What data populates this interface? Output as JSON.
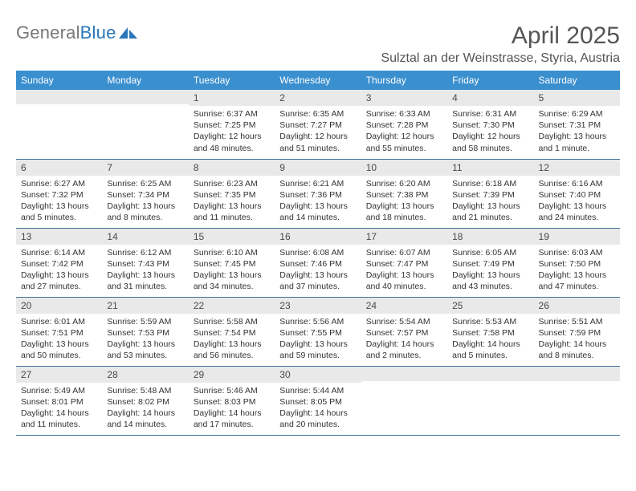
{
  "brand": {
    "name_part1": "General",
    "name_part2": "Blue",
    "text_color_gray": "#777777",
    "text_color_blue": "#2a77bb",
    "icon_fill": "#2a77bb"
  },
  "title": "April 2025",
  "location": "Sulztal an der Weinstrasse, Styria, Austria",
  "colors": {
    "header_bg": "#3a8fcf",
    "header_fg": "#ffffff",
    "daynum_bg": "#e9e9e9",
    "daynum_fg": "#4a4a4a",
    "cell_text": "#333333",
    "row_border": "#3a6f9a",
    "page_bg": "#ffffff"
  },
  "columns": [
    "Sunday",
    "Monday",
    "Tuesday",
    "Wednesday",
    "Thursday",
    "Friday",
    "Saturday"
  ],
  "weeks": [
    [
      {
        "day": "",
        "sunrise": "",
        "sunset": "",
        "daylight": ""
      },
      {
        "day": "",
        "sunrise": "",
        "sunset": "",
        "daylight": ""
      },
      {
        "day": "1",
        "sunrise": "Sunrise: 6:37 AM",
        "sunset": "Sunset: 7:25 PM",
        "daylight": "Daylight: 12 hours and 48 minutes."
      },
      {
        "day": "2",
        "sunrise": "Sunrise: 6:35 AM",
        "sunset": "Sunset: 7:27 PM",
        "daylight": "Daylight: 12 hours and 51 minutes."
      },
      {
        "day": "3",
        "sunrise": "Sunrise: 6:33 AM",
        "sunset": "Sunset: 7:28 PM",
        "daylight": "Daylight: 12 hours and 55 minutes."
      },
      {
        "day": "4",
        "sunrise": "Sunrise: 6:31 AM",
        "sunset": "Sunset: 7:30 PM",
        "daylight": "Daylight: 12 hours and 58 minutes."
      },
      {
        "day": "5",
        "sunrise": "Sunrise: 6:29 AM",
        "sunset": "Sunset: 7:31 PM",
        "daylight": "Daylight: 13 hours and 1 minute."
      }
    ],
    [
      {
        "day": "6",
        "sunrise": "Sunrise: 6:27 AM",
        "sunset": "Sunset: 7:32 PM",
        "daylight": "Daylight: 13 hours and 5 minutes."
      },
      {
        "day": "7",
        "sunrise": "Sunrise: 6:25 AM",
        "sunset": "Sunset: 7:34 PM",
        "daylight": "Daylight: 13 hours and 8 minutes."
      },
      {
        "day": "8",
        "sunrise": "Sunrise: 6:23 AM",
        "sunset": "Sunset: 7:35 PM",
        "daylight": "Daylight: 13 hours and 11 minutes."
      },
      {
        "day": "9",
        "sunrise": "Sunrise: 6:21 AM",
        "sunset": "Sunset: 7:36 PM",
        "daylight": "Daylight: 13 hours and 14 minutes."
      },
      {
        "day": "10",
        "sunrise": "Sunrise: 6:20 AM",
        "sunset": "Sunset: 7:38 PM",
        "daylight": "Daylight: 13 hours and 18 minutes."
      },
      {
        "day": "11",
        "sunrise": "Sunrise: 6:18 AM",
        "sunset": "Sunset: 7:39 PM",
        "daylight": "Daylight: 13 hours and 21 minutes."
      },
      {
        "day": "12",
        "sunrise": "Sunrise: 6:16 AM",
        "sunset": "Sunset: 7:40 PM",
        "daylight": "Daylight: 13 hours and 24 minutes."
      }
    ],
    [
      {
        "day": "13",
        "sunrise": "Sunrise: 6:14 AM",
        "sunset": "Sunset: 7:42 PM",
        "daylight": "Daylight: 13 hours and 27 minutes."
      },
      {
        "day": "14",
        "sunrise": "Sunrise: 6:12 AM",
        "sunset": "Sunset: 7:43 PM",
        "daylight": "Daylight: 13 hours and 31 minutes."
      },
      {
        "day": "15",
        "sunrise": "Sunrise: 6:10 AM",
        "sunset": "Sunset: 7:45 PM",
        "daylight": "Daylight: 13 hours and 34 minutes."
      },
      {
        "day": "16",
        "sunrise": "Sunrise: 6:08 AM",
        "sunset": "Sunset: 7:46 PM",
        "daylight": "Daylight: 13 hours and 37 minutes."
      },
      {
        "day": "17",
        "sunrise": "Sunrise: 6:07 AM",
        "sunset": "Sunset: 7:47 PM",
        "daylight": "Daylight: 13 hours and 40 minutes."
      },
      {
        "day": "18",
        "sunrise": "Sunrise: 6:05 AM",
        "sunset": "Sunset: 7:49 PM",
        "daylight": "Daylight: 13 hours and 43 minutes."
      },
      {
        "day": "19",
        "sunrise": "Sunrise: 6:03 AM",
        "sunset": "Sunset: 7:50 PM",
        "daylight": "Daylight: 13 hours and 47 minutes."
      }
    ],
    [
      {
        "day": "20",
        "sunrise": "Sunrise: 6:01 AM",
        "sunset": "Sunset: 7:51 PM",
        "daylight": "Daylight: 13 hours and 50 minutes."
      },
      {
        "day": "21",
        "sunrise": "Sunrise: 5:59 AM",
        "sunset": "Sunset: 7:53 PM",
        "daylight": "Daylight: 13 hours and 53 minutes."
      },
      {
        "day": "22",
        "sunrise": "Sunrise: 5:58 AM",
        "sunset": "Sunset: 7:54 PM",
        "daylight": "Daylight: 13 hours and 56 minutes."
      },
      {
        "day": "23",
        "sunrise": "Sunrise: 5:56 AM",
        "sunset": "Sunset: 7:55 PM",
        "daylight": "Daylight: 13 hours and 59 minutes."
      },
      {
        "day": "24",
        "sunrise": "Sunrise: 5:54 AM",
        "sunset": "Sunset: 7:57 PM",
        "daylight": "Daylight: 14 hours and 2 minutes."
      },
      {
        "day": "25",
        "sunrise": "Sunrise: 5:53 AM",
        "sunset": "Sunset: 7:58 PM",
        "daylight": "Daylight: 14 hours and 5 minutes."
      },
      {
        "day": "26",
        "sunrise": "Sunrise: 5:51 AM",
        "sunset": "Sunset: 7:59 PM",
        "daylight": "Daylight: 14 hours and 8 minutes."
      }
    ],
    [
      {
        "day": "27",
        "sunrise": "Sunrise: 5:49 AM",
        "sunset": "Sunset: 8:01 PM",
        "daylight": "Daylight: 14 hours and 11 minutes."
      },
      {
        "day": "28",
        "sunrise": "Sunrise: 5:48 AM",
        "sunset": "Sunset: 8:02 PM",
        "daylight": "Daylight: 14 hours and 14 minutes."
      },
      {
        "day": "29",
        "sunrise": "Sunrise: 5:46 AM",
        "sunset": "Sunset: 8:03 PM",
        "daylight": "Daylight: 14 hours and 17 minutes."
      },
      {
        "day": "30",
        "sunrise": "Sunrise: 5:44 AM",
        "sunset": "Sunset: 8:05 PM",
        "daylight": "Daylight: 14 hours and 20 minutes."
      },
      {
        "day": "",
        "sunrise": "",
        "sunset": "",
        "daylight": ""
      },
      {
        "day": "",
        "sunrise": "",
        "sunset": "",
        "daylight": ""
      },
      {
        "day": "",
        "sunrise": "",
        "sunset": "",
        "daylight": ""
      }
    ]
  ]
}
